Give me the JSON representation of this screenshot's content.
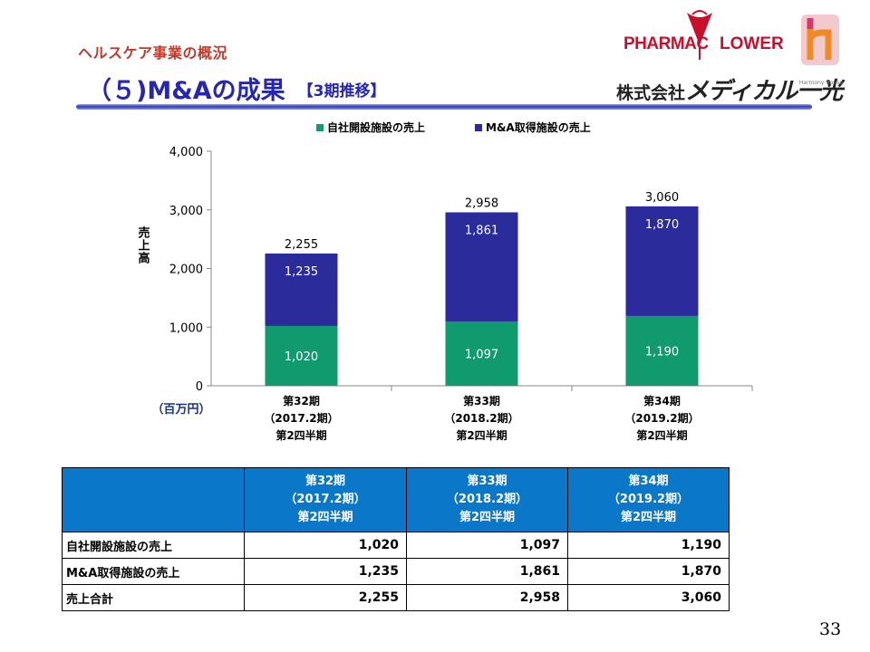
{
  "header": {
    "subtitle": "ヘルスケア事業の概況",
    "title": "（５)M&Aの成果",
    "title_tag": "【3期推移】"
  },
  "logo": {
    "brand_left": "PHARMAC",
    "brand_right": "LOWER",
    "company_prefix": "株式会社",
    "company_name": "メディカル一光",
    "harmony": "Harmony House"
  },
  "chart_data": {
    "type": "stacked-bar",
    "ylabel": "売上高",
    "unit": "（百万円）",
    "ylim": [
      0,
      4000
    ],
    "yticks": [
      0,
      1000,
      2000,
      3000,
      4000
    ],
    "ytick_labels": [
      "0",
      "1,000",
      "2,000",
      "3,000",
      "4,000"
    ],
    "gridlines": false,
    "legend_position": "top",
    "categories": [
      [
        "第32期",
        "（2017.2期）",
        "第2四半期"
      ],
      [
        "第33期",
        "（2018.2期）",
        "第2四半期"
      ],
      [
        "第34期",
        "（2019.2期）",
        "第2四半期"
      ]
    ],
    "series": [
      {
        "name": "自社開設施設の売上",
        "color": "#119a6e",
        "values": [
          1020,
          1097,
          1190
        ],
        "labels": [
          "1,020",
          "1,097",
          "1,190"
        ]
      },
      {
        "name": "M&A取得施設の売上",
        "color": "#2b2b9c",
        "values": [
          1235,
          1861,
          1870
        ],
        "labels": [
          "1,235",
          "1,861",
          "1,870"
        ]
      }
    ],
    "totals": [
      2255,
      2958,
      3060
    ],
    "total_labels": [
      "2,255",
      "2,958",
      "3,060"
    ]
  },
  "table": {
    "header_lines": [
      [
        "第32期",
        "（2017.2期）",
        "第2四半期"
      ],
      [
        "第33期",
        "（2018.2期）",
        "第2四半期"
      ],
      [
        "第34期",
        "（2019.2期）",
        "第2四半期"
      ]
    ],
    "rows": [
      {
        "label": "自社開設施設の売上",
        "values": [
          "1,020",
          "1,097",
          "1,190"
        ]
      },
      {
        "label": "M&A取得施設の売上",
        "values": [
          "1,235",
          "1,861",
          "1,870"
        ]
      },
      {
        "label": "売上合計",
        "values": [
          "2,255",
          "2,958",
          "3,060"
        ]
      }
    ]
  },
  "page_number": "33"
}
